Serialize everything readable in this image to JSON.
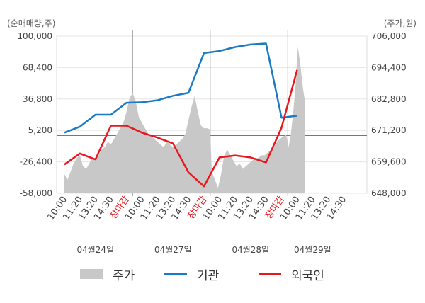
{
  "chart_data": {
    "type": "line",
    "left_axis_unit": "(순매매량,주)",
    "right_axis_unit": "(주가,원)",
    "y_left_ticks": [
      "100,000",
      "68,400",
      "36,800",
      "5,200",
      "-26,400",
      "-58,000"
    ],
    "y_left_range": [
      -58000,
      100000
    ],
    "y_right_ticks": [
      "706,000",
      "694,400",
      "682,800",
      "671,200",
      "659,600",
      "648,000"
    ],
    "y_right_range": [
      648000,
      706000
    ],
    "x_tick_labels": [
      "10:00",
      "11:20",
      "13:20",
      "14:30",
      "장마감",
      "10:00",
      "11:20",
      "13:20",
      "14:30",
      "장마감",
      "10:00",
      "11:20",
      "13:20",
      "14:30",
      "장마감",
      "10:00",
      "11:20",
      "13:20",
      "14:30"
    ],
    "closing_label": "장마감",
    "x_slots": 20,
    "day_labels": [
      {
        "text": "04월24일",
        "slot": 2
      },
      {
        "text": "04월27일",
        "slot": 7
      },
      {
        "text": "04월28일",
        "slot": 12
      },
      {
        "text": "04월29일",
        "slot": 16
      }
    ],
    "day_separators": [
      4.4,
      9.4,
      14.4
    ],
    "grid": true,
    "legend_position": "bottom",
    "series": [
      {
        "name": "주가",
        "kind": "area",
        "axis": "right",
        "color": "#c8c8c8",
        "points": [
          [
            0,
            655000
          ],
          [
            0.2,
            653000
          ],
          [
            0.4,
            656000
          ],
          [
            0.6,
            659000
          ],
          [
            0.8,
            661000
          ],
          [
            1,
            662000
          ],
          [
            1.2,
            658000
          ],
          [
            1.4,
            657000
          ],
          [
            1.6,
            659000
          ],
          [
            1.8,
            661000
          ],
          [
            2,
            660000
          ],
          [
            2.2,
            662000
          ],
          [
            2.4,
            664000
          ],
          [
            2.6,
            665000
          ],
          [
            2.8,
            667000
          ],
          [
            3,
            666000
          ],
          [
            3.2,
            668000
          ],
          [
            3.4,
            670000
          ],
          [
            3.6,
            672000
          ],
          [
            3.8,
            674000
          ],
          [
            4,
            678000
          ],
          [
            4.2,
            683000
          ],
          [
            4.4,
            685000
          ],
          [
            4.6,
            682000
          ],
          [
            4.8,
            676000
          ],
          [
            5,
            674000
          ],
          [
            5.2,
            672000
          ],
          [
            5.4,
            670000
          ],
          [
            5.6,
            669000
          ],
          [
            5.8,
            668000
          ],
          [
            6,
            667000
          ],
          [
            6.2,
            666000
          ],
          [
            6.4,
            665000
          ],
          [
            6.6,
            667000
          ],
          [
            6.8,
            666000
          ],
          [
            7,
            665000
          ],
          [
            7.2,
            666000
          ],
          [
            7.4,
            667000
          ],
          [
            7.6,
            668000
          ],
          [
            7.8,
            670000
          ],
          [
            8,
            675000
          ],
          [
            8.2,
            680000
          ],
          [
            8.4,
            684000
          ],
          [
            8.6,
            678000
          ],
          [
            8.8,
            673000
          ],
          [
            9,
            672000
          ],
          [
            9.2,
            672000
          ],
          [
            9.4,
            671500
          ],
          [
            9.5,
            656000
          ],
          [
            9.7,
            653000
          ],
          [
            9.9,
            650000
          ],
          [
            10.1,
            655000
          ],
          [
            10.3,
            662000
          ],
          [
            10.5,
            664000
          ],
          [
            10.7,
            662000
          ],
          [
            10.9,
            660000
          ],
          [
            11.1,
            658000
          ],
          [
            11.3,
            659000
          ],
          [
            11.5,
            657000
          ],
          [
            11.7,
            658000
          ],
          [
            11.9,
            659000
          ],
          [
            12.1,
            660000
          ],
          [
            12.3,
            661000
          ],
          [
            12.5,
            661000
          ],
          [
            12.7,
            662000
          ],
          [
            12.9,
            662000
          ],
          [
            13.1,
            663000
          ],
          [
            13.3,
            664000
          ],
          [
            13.5,
            665000
          ],
          [
            13.7,
            667000
          ],
          [
            13.9,
            668000
          ],
          [
            14.1,
            669000
          ],
          [
            14.3,
            669500
          ],
          [
            14.45,
            665000
          ],
          [
            14.6,
            670000
          ],
          [
            14.75,
            678000
          ],
          [
            14.9,
            688000
          ],
          [
            15.05,
            702000
          ],
          [
            15.2,
            696000
          ],
          [
            15.35,
            688000
          ],
          [
            15.5,
            682000
          ]
        ]
      },
      {
        "name": "기관",
        "kind": "line",
        "axis": "left",
        "color": "#1a7ac4",
        "points": [
          [
            0,
            3000
          ],
          [
            1,
            9000
          ],
          [
            2,
            21000
          ],
          [
            3,
            21000
          ],
          [
            4,
            33000
          ],
          [
            5,
            33500
          ],
          [
            6,
            35500
          ],
          [
            7,
            40000
          ],
          [
            8,
            43000
          ],
          [
            9,
            83000
          ],
          [
            10,
            85000
          ],
          [
            11,
            89000
          ],
          [
            12,
            91500
          ],
          [
            13,
            92500
          ],
          [
            14,
            18000
          ],
          [
            15,
            20000
          ]
        ]
      },
      {
        "name": "외국인",
        "kind": "line",
        "axis": "left",
        "color": "#e8171f",
        "points": [
          [
            0,
            -29000
          ],
          [
            1,
            -18000
          ],
          [
            2,
            -24000
          ],
          [
            3,
            10000
          ],
          [
            4,
            10000
          ],
          [
            5,
            3000
          ],
          [
            6,
            -2000
          ],
          [
            7,
            -8000
          ],
          [
            8,
            -37000
          ],
          [
            9,
            -51000
          ],
          [
            10,
            -22000
          ],
          [
            11,
            -20000
          ],
          [
            12,
            -22000
          ],
          [
            13,
            -27000
          ],
          [
            14,
            8000
          ],
          [
            15,
            66000
          ]
        ]
      }
    ]
  },
  "legend": [
    {
      "name": "주가",
      "swatch": "area",
      "color": "#c8c8c8"
    },
    {
      "name": "기관",
      "swatch": "line",
      "color": "#1a7ac4"
    },
    {
      "name": "외국인",
      "swatch": "line",
      "color": "#e8171f"
    }
  ]
}
